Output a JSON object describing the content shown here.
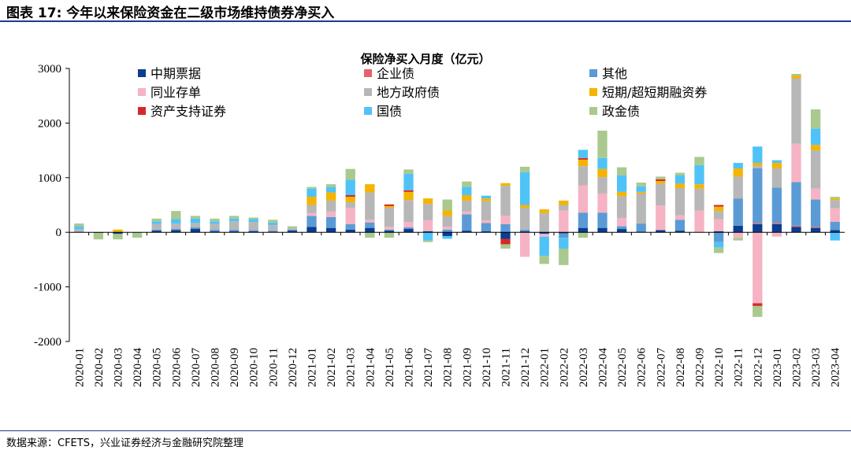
{
  "figure": {
    "title": "图表 17:  今年以来保险资金在二级市场维持债券净买入",
    "source": "数据来源：CFETS，兴业证券经济与金融研究院整理"
  },
  "chart_data": {
    "type": "bar",
    "stacked": true,
    "title": "保险净买入月度（亿元）",
    "xlabel": "",
    "ylabel": "",
    "ylim": [
      -2000,
      3000
    ],
    "yticks": [
      -2000,
      -1000,
      0,
      1000,
      2000,
      3000
    ],
    "legend_position": "top",
    "categories": [
      "2020-01",
      "2020-02",
      "2020-03",
      "2020-04",
      "2020-05",
      "2020-06",
      "2020-07",
      "2020-08",
      "2020-09",
      "2020-10",
      "2020-11",
      "2020-12",
      "2021-01",
      "2021-02",
      "2021-03",
      "2021-04",
      "2021-05",
      "2021-06",
      "2021-07",
      "2021-08",
      "2021-09",
      "2021-10",
      "2021-11",
      "2021-12",
      "2022-01",
      "2022-02",
      "2022-03",
      "2022-04",
      "2022-05",
      "2022-06",
      "2022-07",
      "2022-08",
      "2022-09",
      "2022-10",
      "2022-11",
      "2022-12",
      "2023-01",
      "2023-02",
      "2023-03",
      "2023-04"
    ],
    "series": [
      {
        "name": "中期票据",
        "color": "#0b3d91",
        "values": [
          0,
          -10,
          -30,
          0,
          30,
          40,
          60,
          20,
          20,
          20,
          10,
          30,
          100,
          80,
          50,
          80,
          30,
          60,
          20,
          -70,
          30,
          20,
          -120,
          20,
          -30,
          -20,
          80,
          80,
          60,
          10,
          40,
          30,
          0,
          20,
          120,
          150,
          150,
          100,
          80,
          40
        ]
      },
      {
        "name": "企业债",
        "color": "#e8606a",
        "values": [
          0,
          0,
          0,
          0,
          0,
          0,
          0,
          0,
          0,
          0,
          0,
          0,
          0,
          0,
          0,
          0,
          0,
          0,
          0,
          0,
          0,
          0,
          0,
          0,
          0,
          0,
          0,
          0,
          0,
          0,
          0,
          0,
          0,
          0,
          0,
          20,
          20,
          20,
          20,
          0
        ]
      },
      {
        "name": "其他",
        "color": "#5b9bd5",
        "values": [
          10,
          0,
          0,
          0,
          20,
          20,
          30,
          30,
          30,
          20,
          20,
          20,
          200,
          200,
          100,
          100,
          20,
          30,
          0,
          50,
          300,
          150,
          150,
          30,
          0,
          -80,
          280,
          280,
          50,
          150,
          0,
          200,
          0,
          -180,
          500,
          1000,
          650,
          800,
          500,
          150
        ]
      },
      {
        "name": "同业存单",
        "color": "#f6b3c4",
        "values": [
          0,
          0,
          0,
          0,
          0,
          0,
          0,
          0,
          0,
          0,
          0,
          0,
          50,
          100,
          300,
          50,
          50,
          100,
          200,
          50,
          50,
          50,
          150,
          -450,
          -50,
          400,
          500,
          350,
          150,
          0,
          450,
          80,
          400,
          220,
          -100,
          -1300,
          -80,
          700,
          200,
          250
        ]
      },
      {
        "name": "地方政府债",
        "color": "#b7b7b7",
        "values": [
          50,
          0,
          0,
          0,
          100,
          100,
          80,
          100,
          150,
          150,
          100,
          30,
          150,
          200,
          100,
          500,
          350,
          400,
          300,
          200,
          200,
          350,
          550,
          400,
          350,
          100,
          350,
          300,
          400,
          550,
          400,
          500,
          400,
          150,
          400,
          50,
          350,
          1200,
          700,
          150
        ]
      },
      {
        "name": "短期/超短期融资券",
        "color": "#f4b400",
        "values": [
          0,
          0,
          50,
          0,
          0,
          0,
          0,
          0,
          0,
          0,
          0,
          0,
          150,
          150,
          100,
          150,
          30,
          150,
          100,
          100,
          100,
          50,
          50,
          50,
          70,
          80,
          120,
          150,
          80,
          30,
          50,
          80,
          80,
          80,
          150,
          50,
          100,
          50,
          100,
          30
        ]
      },
      {
        "name": "资产支持证券",
        "color": "#d62728",
        "values": [
          0,
          0,
          0,
          0,
          0,
          0,
          0,
          0,
          0,
          0,
          0,
          0,
          0,
          0,
          30,
          0,
          30,
          30,
          0,
          0,
          0,
          0,
          -100,
          0,
          0,
          0,
          30,
          0,
          0,
          0,
          30,
          0,
          0,
          30,
          0,
          -50,
          0,
          0,
          0,
          0
        ]
      },
      {
        "name": "国债",
        "color": "#4fc3f7",
        "values": [
          50,
          0,
          0,
          0,
          50,
          80,
          80,
          50,
          50,
          50,
          50,
          0,
          150,
          100,
          280,
          0,
          0,
          300,
          -150,
          -50,
          150,
          50,
          0,
          600,
          -350,
          -200,
          150,
          200,
          300,
          100,
          0,
          150,
          350,
          -100,
          100,
          300,
          50,
          0,
          300,
          -150
        ]
      },
      {
        "name": "政金债",
        "color": "#a9c98e",
        "values": [
          50,
          -120,
          -100,
          -100,
          50,
          150,
          50,
          50,
          50,
          30,
          50,
          30,
          30,
          50,
          200,
          -100,
          -100,
          80,
          -30,
          200,
          100,
          0,
          -80,
          100,
          -150,
          -300,
          -100,
          500,
          150,
          70,
          50,
          50,
          150,
          -100,
          -50,
          -200,
          0,
          30,
          350,
          30
        ]
      }
    ]
  }
}
